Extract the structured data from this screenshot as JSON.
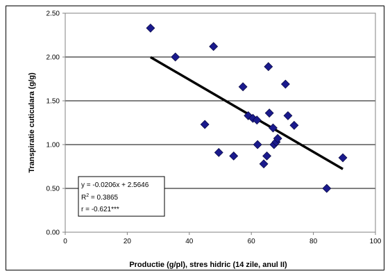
{
  "chart_data": {
    "type": "scatter",
    "xlabel": "Productie (g/pl), stres hidric (14 zile, anul II)",
    "ylabel": "Transpiratie cuticulara (g/g)",
    "xlim": [
      0,
      100
    ],
    "ylim": [
      0,
      2.5
    ],
    "x_ticks": [
      "0",
      "20",
      "40",
      "60",
      "80",
      "100"
    ],
    "y_ticks": [
      "0.00",
      "0.50",
      "1.00",
      "1.50",
      "2.00",
      "2.50"
    ],
    "grid": "horizontal",
    "marker": "diamond",
    "marker_color": "#1a1a8c",
    "trendline_color": "#000000",
    "points": [
      {
        "x": 27.5,
        "y": 2.33
      },
      {
        "x": 35.5,
        "y": 2.0
      },
      {
        "x": 47.8,
        "y": 2.12
      },
      {
        "x": 45.0,
        "y": 1.23
      },
      {
        "x": 49.5,
        "y": 0.91
      },
      {
        "x": 54.3,
        "y": 0.87
      },
      {
        "x": 57.3,
        "y": 1.66
      },
      {
        "x": 59.0,
        "y": 1.33
      },
      {
        "x": 60.5,
        "y": 1.3
      },
      {
        "x": 61.8,
        "y": 1.28
      },
      {
        "x": 62.0,
        "y": 1.0
      },
      {
        "x": 64.0,
        "y": 0.78
      },
      {
        "x": 65.0,
        "y": 0.87
      },
      {
        "x": 65.5,
        "y": 1.89
      },
      {
        "x": 65.8,
        "y": 1.36
      },
      {
        "x": 67.0,
        "y": 1.19
      },
      {
        "x": 67.3,
        "y": 1.0
      },
      {
        "x": 68.0,
        "y": 1.03
      },
      {
        "x": 68.5,
        "y": 1.07
      },
      {
        "x": 71.0,
        "y": 1.69
      },
      {
        "x": 71.8,
        "y": 1.33
      },
      {
        "x": 73.8,
        "y": 1.22
      },
      {
        "x": 84.3,
        "y": 0.5
      },
      {
        "x": 89.5,
        "y": 0.85
      }
    ],
    "trendline": {
      "x_start": 27.5,
      "x_end": 89.5,
      "slope": -0.0206,
      "intercept": 2.5646
    },
    "annotation": {
      "line1": "y = -0.0206x + 2.5646",
      "line2_prefix": "R",
      "line2_sup": "2",
      "line2_suffix": " = 0.3865",
      "line3": "r = -0.621***"
    }
  }
}
